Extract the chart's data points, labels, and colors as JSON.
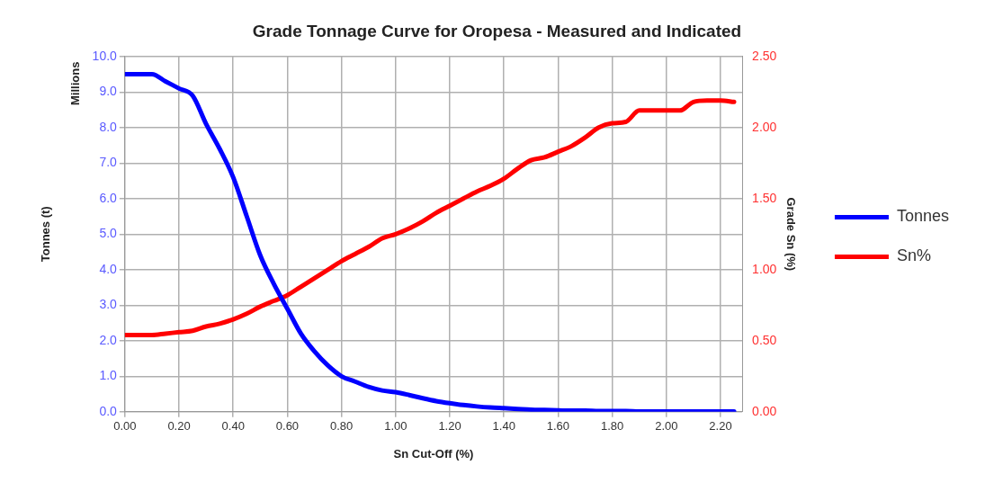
{
  "chart_data": {
    "type": "line",
    "title": "Grade Tonnage Curve for Oropesa - Measured and Indicated",
    "xlabel": "Sn Cut-Off (%)",
    "ylabel": "Tonnes (t)",
    "y2label": "Grade Sn (%)",
    "annotations": [
      "Millions"
    ],
    "x": [
      0,
      0.05,
      0.1,
      0.15,
      0.2,
      0.25,
      0.3,
      0.35,
      0.4,
      0.45,
      0.5,
      0.55,
      0.6,
      0.65,
      0.7,
      0.75,
      0.8,
      0.85,
      0.9,
      0.95,
      1,
      1.05,
      1.1,
      1.15,
      1.2,
      1.25,
      1.3,
      1.35,
      1.4,
      1.45,
      1.5,
      1.55,
      1.6,
      1.65,
      1.7,
      1.75,
      1.8,
      1.85,
      1.9,
      1.95,
      2,
      2.05,
      2.1,
      2.15,
      2.2,
      2.25
    ],
    "series": [
      {
        "name": "Tonnes",
        "color": "#0000ff",
        "values": [
          9.5,
          9.5,
          9.5,
          9.3,
          9.1,
          8.9,
          8.1,
          7.4,
          6.6,
          5.5,
          4.4,
          3.6,
          2.9,
          2.2,
          1.7,
          1.3,
          1.0,
          0.85,
          0.7,
          0.6,
          0.55,
          0.47,
          0.38,
          0.3,
          0.24,
          0.19,
          0.15,
          0.12,
          0.1,
          0.08,
          0.06,
          0.05,
          0.04,
          0.03,
          0.03,
          0.02,
          0.02,
          0.02,
          0.01,
          0.01,
          0.01,
          0.01,
          0.01,
          0.01,
          0.01,
          0.01
        ]
      },
      {
        "name": "Sn%",
        "color": "#ff0000",
        "axis": "y2",
        "values": [
          0.54,
          0.54,
          0.54,
          0.55,
          0.56,
          0.57,
          0.6,
          0.62,
          0.65,
          0.69,
          0.74,
          0.78,
          0.82,
          0.88,
          0.94,
          1.0,
          1.06,
          1.11,
          1.16,
          1.22,
          1.25,
          1.29,
          1.34,
          1.4,
          1.45,
          1.5,
          1.55,
          1.59,
          1.64,
          1.71,
          1.77,
          1.79,
          1.83,
          1.87,
          1.93,
          2.0,
          2.03,
          2.04,
          2.12,
          2.12,
          2.12,
          2.12,
          2.18,
          2.19,
          2.19,
          2.18
        ]
      }
    ],
    "xlim": [
      0,
      2.28
    ],
    "xticks": [
      {
        "value": 0,
        "label": "0.00"
      },
      {
        "value": 0.2,
        "label": "0.20"
      },
      {
        "value": 0.4,
        "label": "0.40"
      },
      {
        "value": 0.6,
        "label": "0.60"
      },
      {
        "value": 0.8,
        "label": "0.80"
      },
      {
        "value": 1,
        "label": "1.00"
      },
      {
        "value": 1.2,
        "label": "1.20"
      },
      {
        "value": 1.4,
        "label": "1.40"
      },
      {
        "value": 1.6,
        "label": "1.60"
      },
      {
        "value": 1.8,
        "label": "1.80"
      },
      {
        "value": 2,
        "label": "2.00"
      },
      {
        "value": 2.2,
        "label": "2.20"
      }
    ],
    "ylim": [
      0,
      10
    ],
    "yticks": [
      {
        "value": 0,
        "label": "0.0"
      },
      {
        "value": 1,
        "label": "1.0"
      },
      {
        "value": 2,
        "label": "2.0"
      },
      {
        "value": 3,
        "label": "3.0"
      },
      {
        "value": 4,
        "label": "4.0"
      },
      {
        "value": 5,
        "label": "5.0"
      },
      {
        "value": 6,
        "label": "6.0"
      },
      {
        "value": 7,
        "label": "7.0"
      },
      {
        "value": 8,
        "label": "8.0"
      },
      {
        "value": 9,
        "label": "9.0"
      },
      {
        "value": 10,
        "label": "10.0"
      }
    ],
    "y2lim": [
      0,
      2.5
    ],
    "y2ticks": [
      {
        "value": 0,
        "label": "0.00"
      },
      {
        "value": 0.5,
        "label": "0.50"
      },
      {
        "value": 1,
        "label": "1.00"
      },
      {
        "value": 1.5,
        "label": "1.50"
      },
      {
        "value": 2,
        "label": "2.00"
      },
      {
        "value": 2.5,
        "label": "2.50"
      }
    ],
    "grid": true,
    "legend": "right",
    "marker": "none",
    "line_style": "solid"
  }
}
